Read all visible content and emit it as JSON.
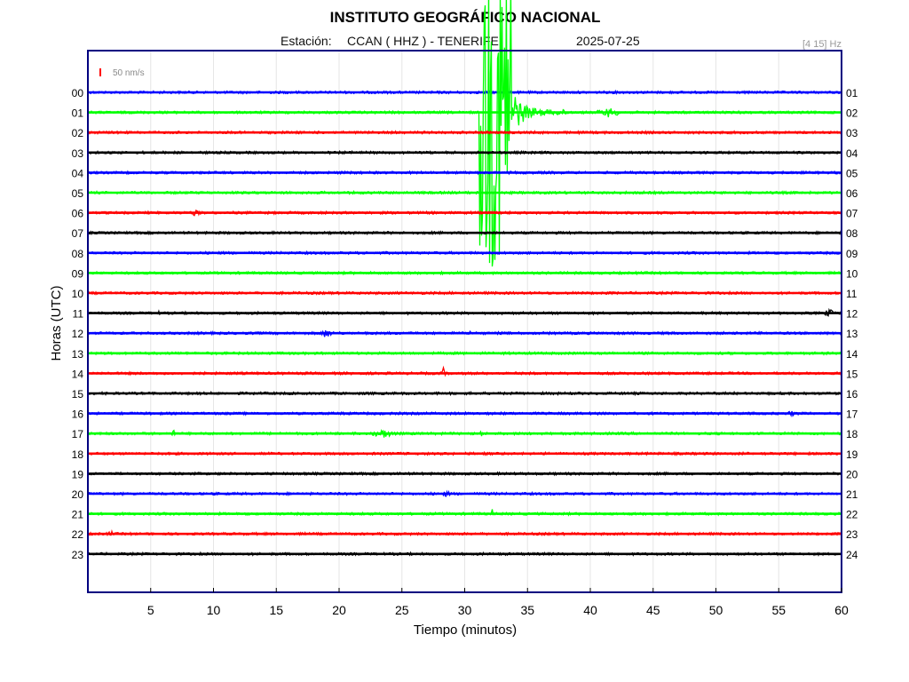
{
  "header": {
    "title": "INSTITUTO GEOGRÁFICO NACIONAL",
    "station_label": "Estación:",
    "station": "CCAN ( HHZ ) - TENERIFE",
    "date": "2025-07-25",
    "filter": "[4 15] Hz"
  },
  "scale_label": "50 nm/s",
  "colors": {
    "blue": "#0000ff",
    "green": "#00ff00",
    "red": "#ff0000",
    "black": "#000000",
    "frame": "#000080",
    "grid": "#e6e6e6"
  },
  "chart_data": {
    "type": "line",
    "xlabel": "Tiempo (minutos)",
    "ylabel": "Horas (UTC)",
    "xlim": [
      0,
      60
    ],
    "xticks": [
      5,
      10,
      15,
      20,
      25,
      30,
      35,
      40,
      45,
      50,
      55,
      60
    ],
    "left_labels": [
      "00",
      "01",
      "02",
      "03",
      "04",
      "05",
      "06",
      "07",
      "08",
      "09",
      "10",
      "11",
      "12",
      "13",
      "14",
      "15",
      "16",
      "17",
      "18",
      "19",
      "20",
      "21",
      "22",
      "23"
    ],
    "right_labels": [
      "01",
      "02",
      "03",
      "04",
      "05",
      "06",
      "07",
      "08",
      "09",
      "10",
      "11",
      "12",
      "13",
      "14",
      "15",
      "16",
      "17",
      "18",
      "19",
      "20",
      "21",
      "22",
      "23",
      "24"
    ],
    "trace_colors": [
      "blue",
      "green",
      "red",
      "black",
      "blue",
      "green",
      "red",
      "black",
      "blue",
      "green",
      "red",
      "black",
      "blue",
      "green",
      "red",
      "black",
      "blue",
      "green",
      "red",
      "black",
      "blue",
      "green",
      "red",
      "black"
    ],
    "events": [
      {
        "hour": 1,
        "minute": 32.5,
        "amplitude": "very large",
        "duration_min": 5,
        "note": "saturated burst"
      },
      {
        "hour": 1,
        "minute": 41.5,
        "amplitude": "moderate",
        "duration_min": 3
      },
      {
        "hour": 6,
        "minute": 8.5,
        "amplitude": "small",
        "duration_min": 2
      },
      {
        "hour": 11,
        "minute": 5.5,
        "amplitude": "small",
        "duration_min": 1
      },
      {
        "hour": 11,
        "minute": 59,
        "amplitude": "moderate",
        "duration_min": 1
      },
      {
        "hour": 12,
        "minute": 19,
        "amplitude": "moderate",
        "duration_min": 1.5
      },
      {
        "hour": 12,
        "minute": 30.5,
        "amplitude": "small",
        "duration_min": 1
      },
      {
        "hour": 14,
        "minute": 28.3,
        "amplitude": "moderate spike",
        "duration_min": 0.3
      },
      {
        "hour": 16,
        "minute": 56,
        "amplitude": "small",
        "duration_min": 1.5
      },
      {
        "hour": 17,
        "minute": 6.8,
        "amplitude": "moderate spike",
        "duration_min": 0.2
      },
      {
        "hour": 17,
        "minute": 23.5,
        "amplitude": "moderate",
        "duration_min": 2.5
      },
      {
        "hour": 17,
        "minute": 31.3,
        "amplitude": "small spike",
        "duration_min": 0.2
      },
      {
        "hour": 20,
        "minute": 28.5,
        "amplitude": "small",
        "duration_min": 1.5
      },
      {
        "hour": 21,
        "minute": 32.2,
        "amplitude": "small spike",
        "duration_min": 0.2
      },
      {
        "hour": 22,
        "minute": 1.8,
        "amplitude": "moderate spike",
        "duration_min": 0.3
      }
    ]
  }
}
